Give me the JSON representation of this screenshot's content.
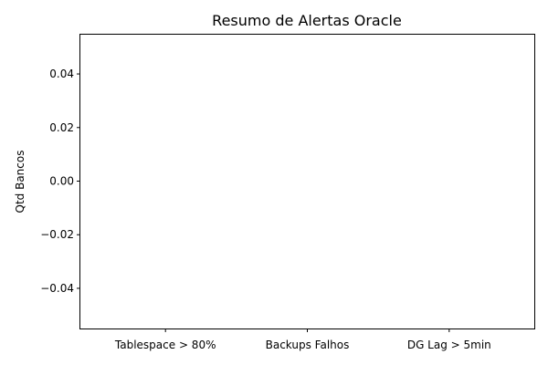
{
  "chart_data": {
    "type": "bar",
    "title": "Resumo de Alertas Oracle",
    "xlabel": "",
    "ylabel": "Qtd Bancos",
    "categories": [
      "Tablespace > 80%",
      "Backups Falhos",
      "DG Lag > 5min"
    ],
    "values": [
      0,
      0,
      0
    ],
    "ylim": [
      -0.055,
      0.055
    ],
    "yticks": [
      0.04,
      0.02,
      0.0,
      -0.02,
      -0.04
    ],
    "ytick_labels": [
      "0.04",
      "0.02",
      "0.00",
      "−0.02",
      "−0.04"
    ],
    "grid": false,
    "legend": "none",
    "bar_color": "#1f77b4"
  }
}
